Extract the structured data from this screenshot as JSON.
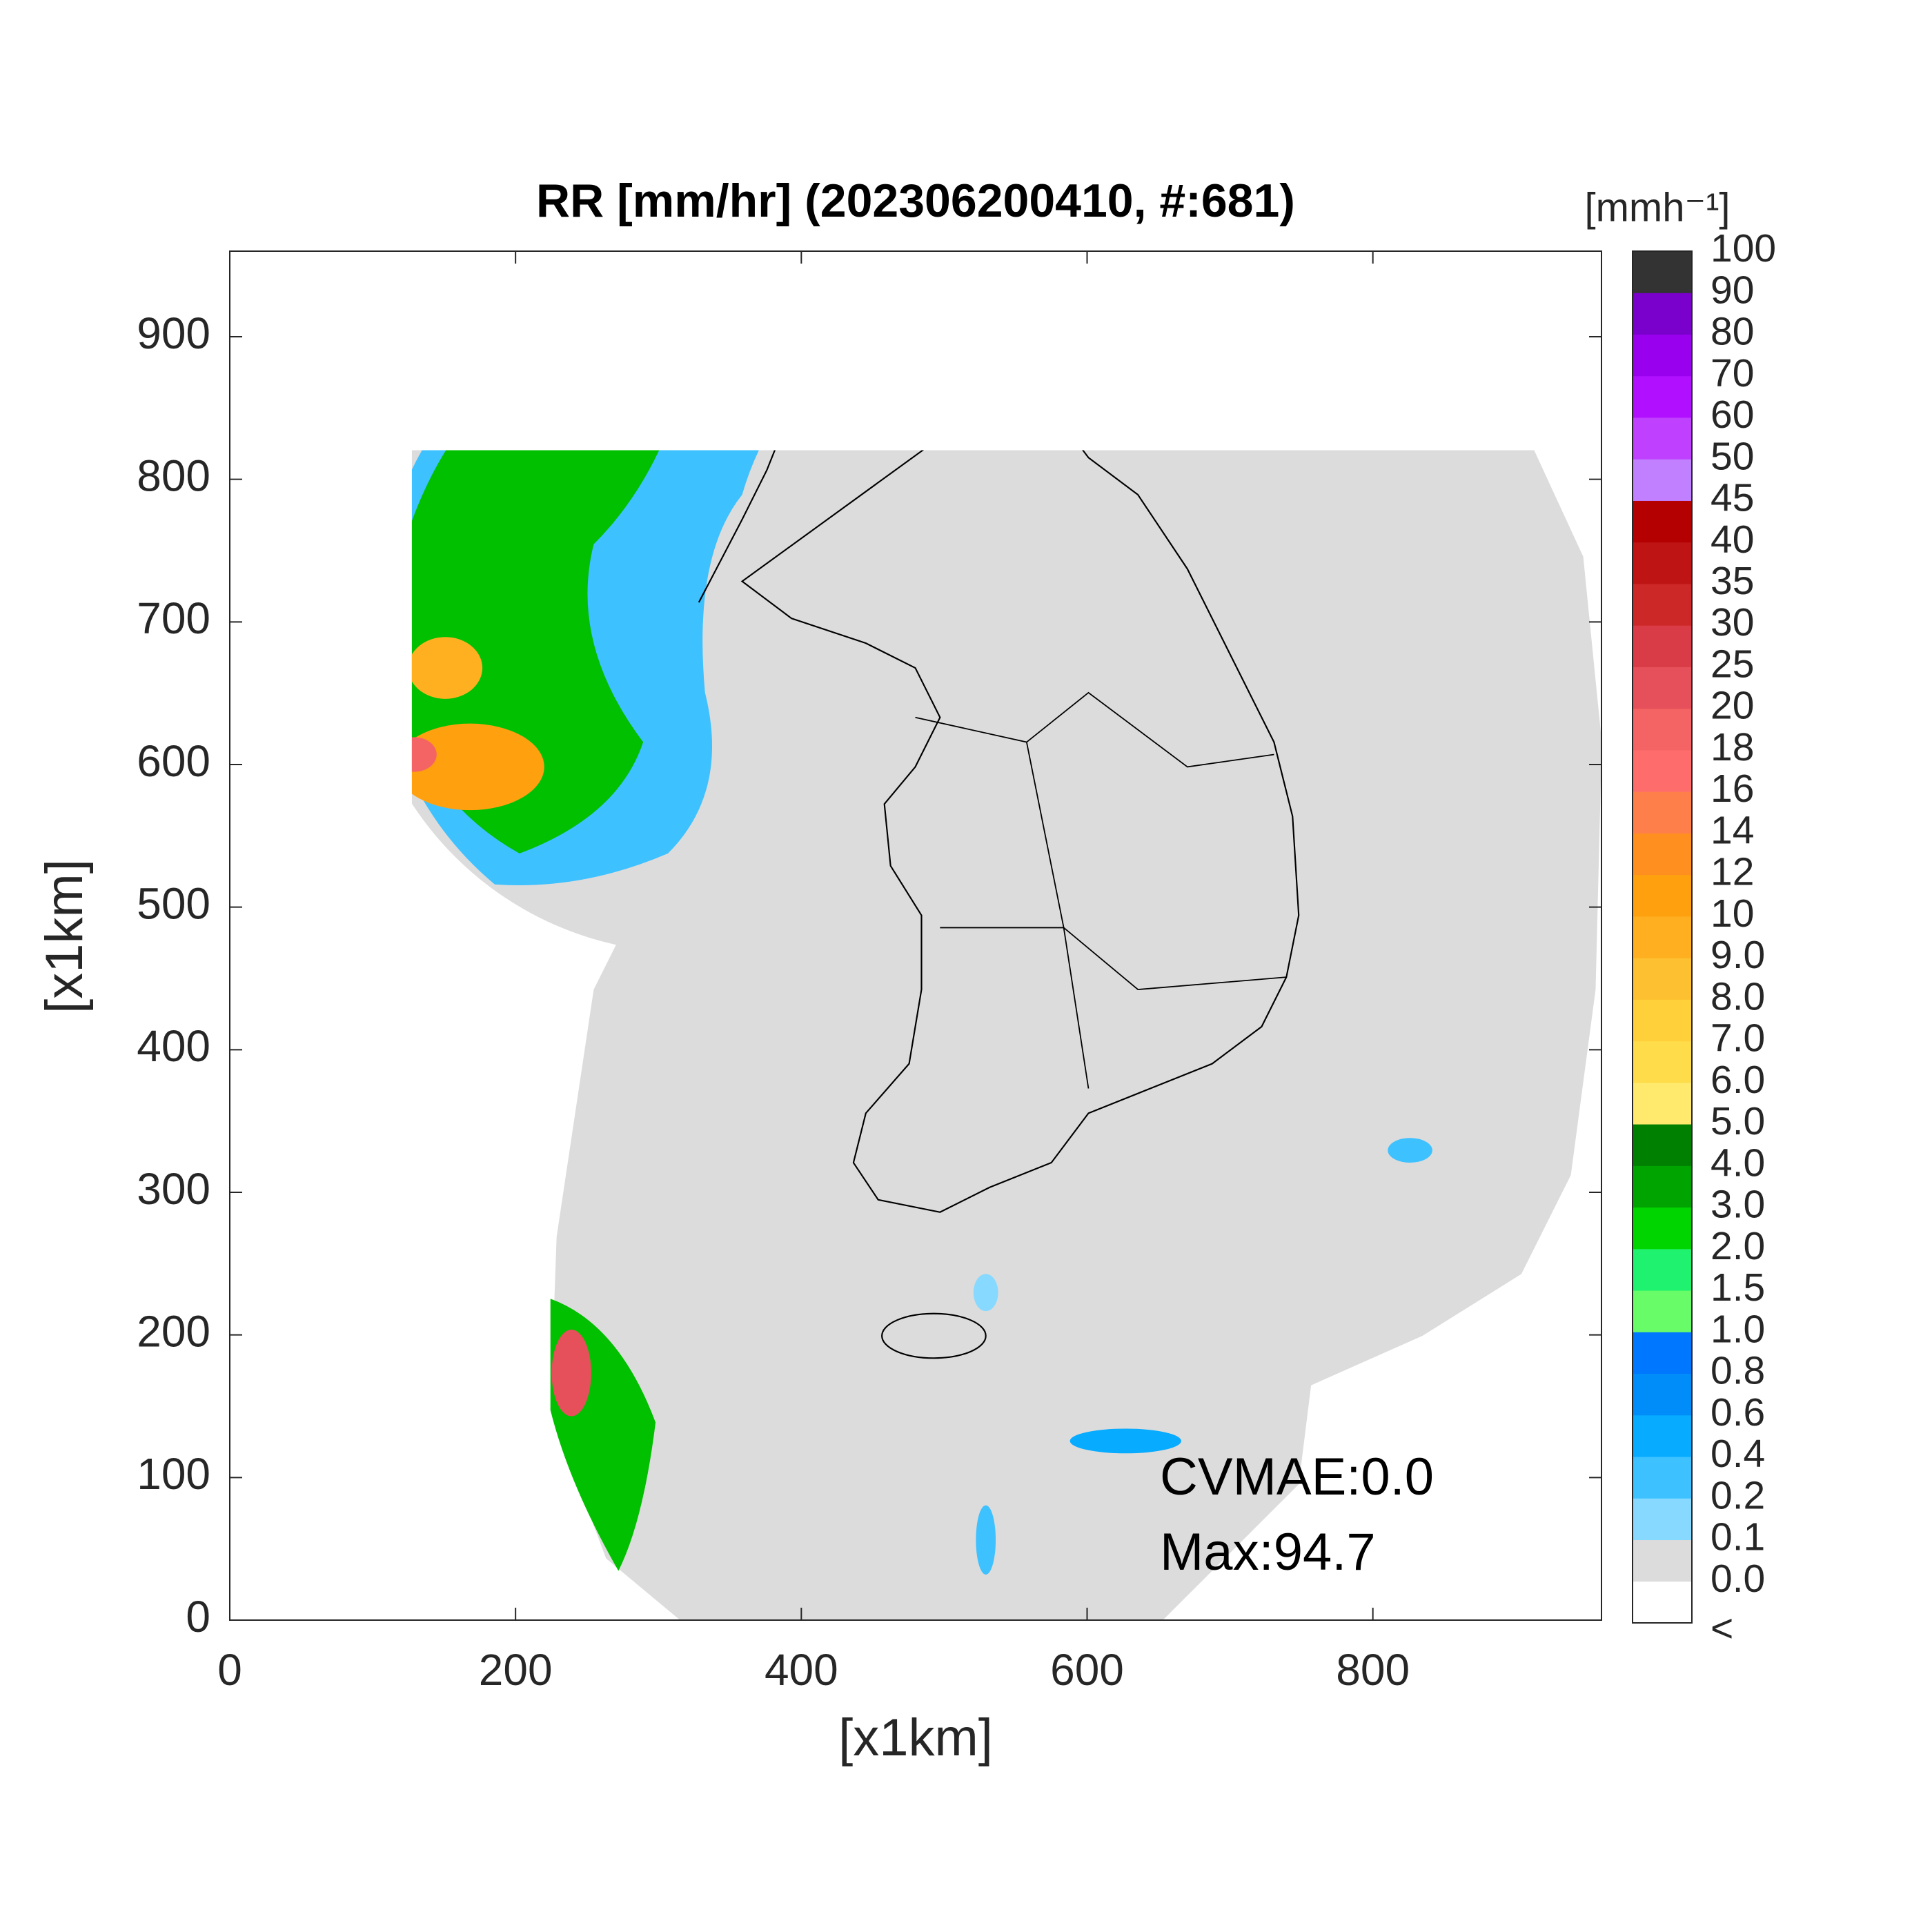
{
  "chart_data": {
    "type": "heatmap",
    "title": "RR [mm/hr] (202306200410, #:681)",
    "x_label": "[x1km]",
    "y_label": "[x1km]",
    "xlim": [
      0,
      960
    ],
    "ylim": [
      0,
      960
    ],
    "xticks": [
      0,
      200,
      400,
      600,
      800
    ],
    "yticks": [
      0,
      100,
      200,
      300,
      400,
      500,
      600,
      700,
      800,
      900
    ],
    "annotations": [
      "CVMAE:0.0",
      "Max:94.7"
    ],
    "colorbar": {
      "label": "[mmh⁻¹]",
      "labels": [
        "<",
        "0.0",
        "0.1",
        "0.2",
        "0.4",
        "0.6",
        "0.8",
        "1.0",
        "1.5",
        "2.0",
        "3.0",
        "4.0",
        "5.0",
        "6.0",
        "7.0",
        "8.0",
        "9.0",
        "10",
        "12",
        "14",
        "16",
        "18",
        "20",
        "25",
        "30",
        "35",
        "40",
        "45",
        "50",
        "60",
        "70",
        "80",
        "90",
        "100"
      ],
      "colors": [
        "#ffffff",
        "#dcdcdc",
        "#87d9ff",
        "#3ec1ff",
        "#07abff",
        "#008dfa",
        "#0077ff",
        "#69fc69",
        "#1ef26e",
        "#00d500",
        "#00a400",
        "#008000",
        "#ffea6e",
        "#ffdc4a",
        "#ffd03a",
        "#fdc030",
        "#ffaf1f",
        "#ffa00f",
        "#ff9020",
        "#ff7f4a",
        "#ff6c6c",
        "#f56464",
        "#e6505a",
        "#d93c46",
        "#cc2828",
        "#be1414",
        "#b40000",
        "#c080ff",
        "#c040ff",
        "#b010ff",
        "#9900ee",
        "#7a00cc",
        "#333333"
      ]
    }
  }
}
